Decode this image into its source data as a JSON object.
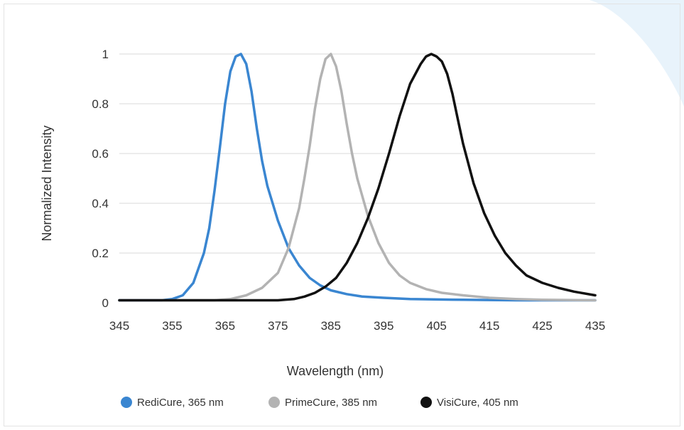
{
  "chart_data": {
    "type": "line",
    "title": "",
    "xlabel": "Wavelength (nm)",
    "ylabel": "Normalized Intensity",
    "xlim": [
      345,
      435
    ],
    "ylim": [
      0,
      1
    ],
    "x_ticks": [
      "345",
      "355",
      "365",
      "375",
      "385",
      "395",
      "405",
      "415",
      "425",
      "435"
    ],
    "y_ticks": [
      "0",
      "0.2",
      "0.4",
      "0.6",
      "0.8",
      "1"
    ],
    "grid": true,
    "legend_position": "bottom",
    "series": [
      {
        "name": "RediCure, 365 nm",
        "color": "#3a86d1",
        "points": [
          [
            345,
            0.01
          ],
          [
            350,
            0.01
          ],
          [
            353,
            0.01
          ],
          [
            355,
            0.015
          ],
          [
            357,
            0.03
          ],
          [
            359,
            0.08
          ],
          [
            361,
            0.2
          ],
          [
            362,
            0.3
          ],
          [
            363,
            0.45
          ],
          [
            364,
            0.62
          ],
          [
            365,
            0.8
          ],
          [
            366,
            0.93
          ],
          [
            367,
            0.99
          ],
          [
            368,
            1.0
          ],
          [
            369,
            0.96
          ],
          [
            370,
            0.85
          ],
          [
            371,
            0.7
          ],
          [
            372,
            0.57
          ],
          [
            373,
            0.47
          ],
          [
            375,
            0.33
          ],
          [
            377,
            0.22
          ],
          [
            379,
            0.15
          ],
          [
            381,
            0.1
          ],
          [
            383,
            0.07
          ],
          [
            385,
            0.05
          ],
          [
            388,
            0.035
          ],
          [
            391,
            0.025
          ],
          [
            395,
            0.02
          ],
          [
            400,
            0.015
          ],
          [
            410,
            0.012
          ],
          [
            420,
            0.01
          ],
          [
            430,
            0.01
          ],
          [
            435,
            0.01
          ]
        ]
      },
      {
        "name": "PrimeCure, 385 nm",
        "color": "#b3b3b3",
        "points": [
          [
            345,
            0.01
          ],
          [
            355,
            0.01
          ],
          [
            363,
            0.01
          ],
          [
            366,
            0.015
          ],
          [
            369,
            0.03
          ],
          [
            372,
            0.06
          ],
          [
            375,
            0.12
          ],
          [
            377,
            0.22
          ],
          [
            379,
            0.38
          ],
          [
            380,
            0.5
          ],
          [
            381,
            0.63
          ],
          [
            382,
            0.78
          ],
          [
            383,
            0.9
          ],
          [
            384,
            0.98
          ],
          [
            385,
            1.0
          ],
          [
            386,
            0.95
          ],
          [
            387,
            0.85
          ],
          [
            388,
            0.72
          ],
          [
            389,
            0.6
          ],
          [
            390,
            0.5
          ],
          [
            392,
            0.35
          ],
          [
            394,
            0.24
          ],
          [
            396,
            0.16
          ],
          [
            398,
            0.11
          ],
          [
            400,
            0.08
          ],
          [
            403,
            0.055
          ],
          [
            406,
            0.04
          ],
          [
            410,
            0.03
          ],
          [
            415,
            0.02
          ],
          [
            420,
            0.015
          ],
          [
            425,
            0.012
          ],
          [
            435,
            0.01
          ]
        ]
      },
      {
        "name": "VisiCure, 405 nm",
        "color": "#111111",
        "points": [
          [
            345,
            0.01
          ],
          [
            360,
            0.01
          ],
          [
            370,
            0.01
          ],
          [
            375,
            0.01
          ],
          [
            378,
            0.015
          ],
          [
            380,
            0.025
          ],
          [
            382,
            0.04
          ],
          [
            384,
            0.065
          ],
          [
            386,
            0.1
          ],
          [
            388,
            0.16
          ],
          [
            390,
            0.24
          ],
          [
            392,
            0.34
          ],
          [
            394,
            0.46
          ],
          [
            396,
            0.6
          ],
          [
            398,
            0.75
          ],
          [
            400,
            0.88
          ],
          [
            402,
            0.96
          ],
          [
            403,
            0.99
          ],
          [
            404,
            1.0
          ],
          [
            405,
            0.99
          ],
          [
            406,
            0.97
          ],
          [
            407,
            0.92
          ],
          [
            408,
            0.84
          ],
          [
            409,
            0.74
          ],
          [
            410,
            0.64
          ],
          [
            412,
            0.48
          ],
          [
            414,
            0.36
          ],
          [
            416,
            0.27
          ],
          [
            418,
            0.2
          ],
          [
            420,
            0.15
          ],
          [
            422,
            0.11
          ],
          [
            425,
            0.08
          ],
          [
            428,
            0.06
          ],
          [
            431,
            0.045
          ],
          [
            435,
            0.03
          ]
        ]
      }
    ]
  }
}
